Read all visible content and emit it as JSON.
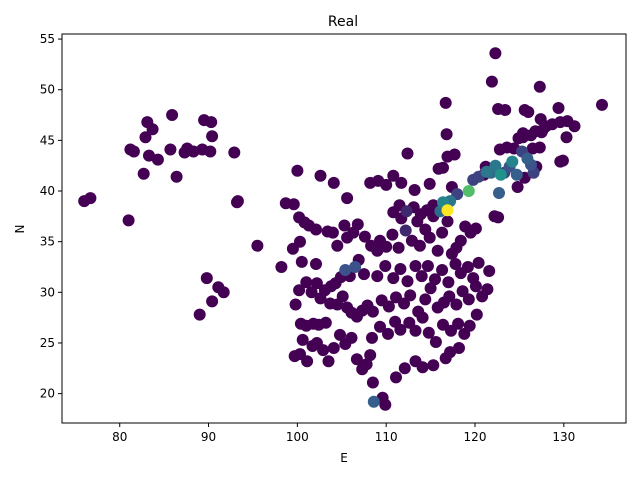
{
  "chart_data": {
    "type": "scatter",
    "title": "Real",
    "xlabel": "E",
    "ylabel": "N",
    "xlim": [
      73.5,
      137.0
    ],
    "ylim": [
      17.1,
      55.5
    ],
    "xticks": [
      80,
      90,
      100,
      110,
      120,
      130
    ],
    "yticks": [
      20,
      25,
      30,
      35,
      40,
      45,
      50,
      55
    ],
    "grid": false,
    "colormap": "viridis",
    "value_range": [
      0,
      1
    ],
    "colors": {
      "low": "#440154",
      "mid": "#31688e",
      "teal": "#21918c",
      "green": "#5ec962",
      "high": "#fde725"
    },
    "points": [
      [
        76.0,
        39.0,
        0
      ],
      [
        76.7,
        39.3,
        0
      ],
      [
        81.0,
        37.1,
        0
      ],
      [
        81.2,
        44.1,
        0
      ],
      [
        81.6,
        43.9,
        0
      ],
      [
        82.7,
        41.7,
        0
      ],
      [
        82.9,
        45.3,
        0
      ],
      [
        83.1,
        46.8,
        0
      ],
      [
        83.3,
        43.5,
        0
      ],
      [
        83.7,
        46.1,
        0
      ],
      [
        84.3,
        43.1,
        0
      ],
      [
        85.7,
        44.1,
        0
      ],
      [
        85.9,
        47.5,
        0
      ],
      [
        86.4,
        41.4,
        0
      ],
      [
        87.3,
        43.8,
        0
      ],
      [
        87.6,
        44.2,
        0
      ],
      [
        88.3,
        43.9,
        0
      ],
      [
        89.3,
        44.1,
        0
      ],
      [
        89.5,
        47.0,
        0
      ],
      [
        90.2,
        43.9,
        0
      ],
      [
        90.3,
        46.8,
        0
      ],
      [
        90.4,
        45.4,
        0
      ],
      [
        92.9,
        43.8,
        0
      ],
      [
        93.3,
        39.0,
        0
      ],
      [
        93.2,
        38.9,
        0
      ],
      [
        95.5,
        34.6,
        0
      ],
      [
        89.0,
        27.8,
        0
      ],
      [
        89.8,
        31.4,
        0
      ],
      [
        90.4,
        29.1,
        0
      ],
      [
        91.1,
        30.5,
        0
      ],
      [
        91.7,
        30.0,
        0
      ],
      [
        98.2,
        32.5,
        0
      ],
      [
        98.7,
        38.8,
        0
      ],
      [
        99.6,
        38.7,
        0
      ],
      [
        100.0,
        42.0,
        0
      ],
      [
        99.5,
        34.3,
        0
      ],
      [
        100.3,
        35.0,
        0
      ],
      [
        100.2,
        37.4,
        0
      ],
      [
        100.8,
        36.9,
        0
      ],
      [
        101.3,
        36.6,
        0
      ],
      [
        102.1,
        36.2,
        0
      ],
      [
        102.6,
        41.5,
        0
      ],
      [
        104.1,
        40.8,
        0
      ],
      [
        105.6,
        39.3,
        0
      ],
      [
        100.5,
        33.0,
        0
      ],
      [
        102.1,
        32.8,
        0
      ],
      [
        103.4,
        36.0,
        0
      ],
      [
        104.0,
        35.9,
        0
      ],
      [
        104.5,
        34.6,
        0
      ],
      [
        105.3,
        36.6,
        0
      ],
      [
        105.6,
        35.4,
        0
      ],
      [
        106.3,
        35.9,
        0
      ],
      [
        106.8,
        36.7,
        0
      ],
      [
        107.6,
        35.5,
        0
      ],
      [
        108.3,
        34.6,
        0
      ],
      [
        109.0,
        34.1,
        0
      ],
      [
        100.2,
        30.2,
        0
      ],
      [
        101.0,
        31.0,
        0
      ],
      [
        101.6,
        30.0,
        0
      ],
      [
        102.2,
        30.9,
        0
      ],
      [
        102.6,
        29.4,
        0
      ],
      [
        103.1,
        30.2,
        0
      ],
      [
        103.8,
        30.6,
        0
      ],
      [
        104.3,
        30.9,
        0
      ],
      [
        104.9,
        31.5,
        0
      ],
      [
        105.4,
        32.2,
        0.25
      ],
      [
        105.9,
        31.6,
        0
      ],
      [
        106.5,
        32.5,
        0.25
      ],
      [
        106.9,
        33.2,
        0
      ],
      [
        107.5,
        31.8,
        0
      ],
      [
        99.8,
        28.8,
        0
      ],
      [
        100.4,
        26.9,
        0
      ],
      [
        101.0,
        26.7,
        0
      ],
      [
        101.8,
        26.9,
        0
      ],
      [
        102.4,
        26.8,
        0
      ],
      [
        103.2,
        27.0,
        0
      ],
      [
        103.7,
        28.9,
        0
      ],
      [
        104.5,
        28.8,
        0
      ],
      [
        105.1,
        29.6,
        0
      ],
      [
        105.6,
        28.5,
        0
      ],
      [
        106.1,
        28.0,
        0
      ],
      [
        106.7,
        27.6,
        0
      ],
      [
        107.3,
        28.2,
        0
      ],
      [
        107.9,
        28.7,
        0
      ],
      [
        99.7,
        23.7,
        0
      ],
      [
        100.3,
        23.9,
        0
      ],
      [
        100.6,
        25.3,
        0
      ],
      [
        101.1,
        23.2,
        0
      ],
      [
        101.7,
        24.7,
        0
      ],
      [
        102.2,
        25.0,
        0
      ],
      [
        102.9,
        24.3,
        0
      ],
      [
        103.5,
        23.2,
        0
      ],
      [
        104.1,
        24.5,
        0
      ],
      [
        104.8,
        25.8,
        0
      ],
      [
        105.4,
        24.9,
        0
      ],
      [
        106.1,
        25.5,
        0
      ],
      [
        106.7,
        23.4,
        0
      ],
      [
        107.3,
        22.4,
        0
      ],
      [
        107.8,
        22.9,
        0
      ],
      [
        108.2,
        23.8,
        0
      ],
      [
        108.5,
        21.1,
        0
      ],
      [
        108.6,
        19.2,
        0.3
      ],
      [
        109.6,
        19.6,
        0
      ],
      [
        109.9,
        18.9,
        0
      ],
      [
        111.1,
        21.6,
        0
      ],
      [
        112.1,
        22.5,
        0
      ],
      [
        113.3,
        23.2,
        0
      ],
      [
        114.1,
        22.6,
        0
      ],
      [
        115.3,
        22.8,
        0
      ],
      [
        116.7,
        23.5,
        0
      ],
      [
        117.2,
        24.1,
        0
      ],
      [
        118.2,
        24.5,
        0
      ],
      [
        108.4,
        25.5,
        0
      ],
      [
        109.3,
        26.6,
        0
      ],
      [
        110.2,
        25.9,
        0
      ],
      [
        111.0,
        27.1,
        0
      ],
      [
        111.6,
        26.3,
        0
      ],
      [
        112.6,
        27.0,
        0
      ],
      [
        113.3,
        26.2,
        0
      ],
      [
        114.1,
        27.5,
        0
      ],
      [
        114.8,
        26.0,
        0
      ],
      [
        115.6,
        25.1,
        0
      ],
      [
        116.4,
        26.8,
        0
      ],
      [
        117.3,
        26.2,
        0
      ],
      [
        118.1,
        26.9,
        0
      ],
      [
        118.8,
        25.9,
        0
      ],
      [
        119.4,
        26.7,
        0
      ],
      [
        120.2,
        27.8,
        0
      ],
      [
        108.5,
        28.1,
        0
      ],
      [
        109.5,
        29.2,
        0
      ],
      [
        110.3,
        28.6,
        0
      ],
      [
        111.1,
        29.5,
        0
      ],
      [
        112.0,
        28.9,
        0
      ],
      [
        112.7,
        29.7,
        0
      ],
      [
        113.6,
        28.1,
        0
      ],
      [
        114.4,
        29.3,
        0
      ],
      [
        115.0,
        30.4,
        0
      ],
      [
        115.8,
        28.5,
        0
      ],
      [
        116.5,
        29.0,
        0
      ],
      [
        117.1,
        29.6,
        0
      ],
      [
        117.9,
        28.8,
        0
      ],
      [
        118.6,
        30.1,
        0
      ],
      [
        119.3,
        29.3,
        0
      ],
      [
        120.1,
        30.6,
        0
      ],
      [
        120.8,
        29.6,
        0
      ],
      [
        121.4,
        30.3,
        0
      ],
      [
        121.6,
        32.1,
        0
      ],
      [
        109.0,
        31.6,
        0
      ],
      [
        109.9,
        32.6,
        0
      ],
      [
        110.8,
        31.4,
        0
      ],
      [
        111.6,
        32.3,
        0
      ],
      [
        112.4,
        31.1,
        0
      ],
      [
        113.3,
        32.6,
        0
      ],
      [
        114.0,
        31.6,
        0
      ],
      [
        114.7,
        32.6,
        0
      ],
      [
        115.5,
        31.3,
        0
      ],
      [
        116.3,
        32.2,
        0
      ],
      [
        117.0,
        31.0,
        0
      ],
      [
        117.8,
        32.8,
        0
      ],
      [
        118.4,
        31.9,
        0
      ],
      [
        119.2,
        32.5,
        0
      ],
      [
        119.8,
        31.4,
        0
      ],
      [
        120.4,
        32.9,
        0
      ],
      [
        109.3,
        35.1,
        0
      ],
      [
        110.0,
        34.5,
        0
      ],
      [
        110.7,
        35.7,
        0
      ],
      [
        111.4,
        34.4,
        0
      ],
      [
        111.7,
        37.3,
        0
      ],
      [
        112.2,
        36.1,
        0.12
      ],
      [
        112.9,
        35.1,
        0
      ],
      [
        113.5,
        37.0,
        0
      ],
      [
        113.8,
        34.6,
        0
      ],
      [
        114.4,
        36.2,
        0
      ],
      [
        114.9,
        35.4,
        0
      ],
      [
        115.3,
        37.5,
        0
      ],
      [
        115.8,
        34.1,
        0
      ],
      [
        116.3,
        35.9,
        0
      ],
      [
        116.9,
        37.0,
        0
      ],
      [
        117.4,
        33.8,
        0
      ],
      [
        117.9,
        34.4,
        0
      ],
      [
        118.4,
        35.1,
        0
      ],
      [
        118.9,
        36.5,
        0
      ],
      [
        119.5,
        35.9,
        0
      ],
      [
        120.1,
        36.3,
        0
      ],
      [
        110.8,
        37.9,
        0
      ],
      [
        111.5,
        38.6,
        0
      ],
      [
        112.3,
        38.0,
        0.12
      ],
      [
        113.1,
        38.4,
        0
      ],
      [
        113.9,
        37.7,
        0
      ],
      [
        114.6,
        38.1,
        0
      ],
      [
        115.3,
        38.6,
        0
      ],
      [
        116.1,
        38.0,
        0.35
      ],
      [
        116.4,
        38.9,
        0.45
      ],
      [
        116.9,
        38.1,
        1.0
      ],
      [
        117.2,
        39.0,
        0.4
      ],
      [
        118.0,
        39.7,
        0.2
      ],
      [
        117.4,
        40.4,
        0
      ],
      [
        108.2,
        40.8,
        0
      ],
      [
        109.1,
        41.0,
        0
      ],
      [
        110.0,
        40.6,
        0
      ],
      [
        110.8,
        41.5,
        0
      ],
      [
        111.7,
        40.8,
        0
      ],
      [
        112.4,
        43.7,
        0
      ],
      [
        113.2,
        40.1,
        0
      ],
      [
        114.9,
        40.7,
        0
      ],
      [
        115.9,
        42.2,
        0
      ],
      [
        116.4,
        42.3,
        0
      ],
      [
        116.9,
        43.4,
        0
      ],
      [
        116.8,
        45.6,
        0
      ],
      [
        116.7,
        48.7,
        0
      ],
      [
        117.7,
        43.6,
        0
      ],
      [
        119.3,
        40.0,
        0.7
      ],
      [
        119.8,
        41.1,
        0.2
      ],
      [
        120.4,
        41.4,
        0.2
      ],
      [
        121.0,
        41.6,
        0
      ],
      [
        121.3,
        41.9,
        0.4
      ],
      [
        121.8,
        41.8,
        0.35
      ],
      [
        122.3,
        42.5,
        0.4
      ],
      [
        122.9,
        41.6,
        0.5
      ],
      [
        122.7,
        39.8,
        0.3
      ],
      [
        122.2,
        37.5,
        0
      ],
      [
        122.6,
        37.4,
        0
      ],
      [
        121.2,
        42.4,
        0
      ],
      [
        123.3,
        41.8,
        0.2
      ],
      [
        123.9,
        42.4,
        0.25
      ],
      [
        124.2,
        42.9,
        0.45
      ],
      [
        124.7,
        41.6,
        0.3
      ],
      [
        125.3,
        43.9,
        0.2
      ],
      [
        125.9,
        43.2,
        0.3
      ],
      [
        126.3,
        42.6,
        0.25
      ],
      [
        126.6,
        41.8,
        0.2
      ],
      [
        126.9,
        42.4,
        0
      ],
      [
        125.6,
        41.3,
        0
      ],
      [
        124.8,
        40.4,
        0
      ],
      [
        122.8,
        44.1,
        0
      ],
      [
        123.6,
        44.3,
        0
      ],
      [
        124.4,
        44.2,
        0
      ],
      [
        124.9,
        45.2,
        0
      ],
      [
        125.4,
        45.7,
        0
      ],
      [
        126.3,
        45.5,
        0
      ],
      [
        126.8,
        45.9,
        0
      ],
      [
        127.5,
        45.8,
        0
      ],
      [
        128.0,
        46.4,
        0
      ],
      [
        128.7,
        46.6,
        0
      ],
      [
        129.6,
        46.8,
        0
      ],
      [
        130.4,
        46.9,
        0
      ],
      [
        130.3,
        45.3,
        0
      ],
      [
        131.2,
        46.4,
        0
      ],
      [
        127.4,
        47.1,
        0
      ],
      [
        127.6,
        46.0,
        0
      ],
      [
        125.6,
        48.0,
        0
      ],
      [
        126.0,
        47.8,
        0
      ],
      [
        123.4,
        48.0,
        0
      ],
      [
        122.6,
        48.1,
        0
      ],
      [
        122.3,
        53.6,
        0
      ],
      [
        121.9,
        50.8,
        0
      ],
      [
        127.3,
        50.3,
        0
      ],
      [
        129.4,
        48.2,
        0
      ],
      [
        134.3,
        48.5,
        0
      ],
      [
        129.6,
        42.9,
        0
      ],
      [
        129.9,
        43.0,
        0
      ],
      [
        127.3,
        44.3,
        0
      ],
      [
        126.5,
        44.2,
        0
      ],
      [
        125.4,
        45.3,
        0
      ]
    ]
  }
}
